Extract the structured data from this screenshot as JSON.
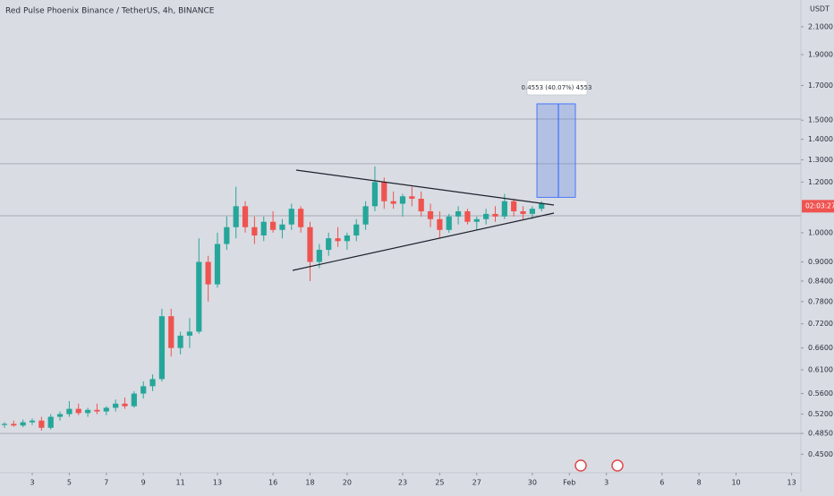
{
  "chart_data": {
    "type": "candlestick",
    "title": "Red Pulse Phoenix Binance / TetherUS, 4h, BINANCE",
    "currency": "USDT",
    "log_scale": true,
    "up_color": "#26a69a",
    "down_color": "#ef5350",
    "x": [
      1.5,
      2,
      2.5,
      3,
      3.5,
      4,
      4.5,
      5,
      5.5,
      6,
      6.5,
      7,
      7.5,
      8,
      8.5,
      9,
      9.5,
      10,
      10.5,
      11,
      11.5,
      12,
      12.5,
      13,
      13.5,
      14,
      14.5,
      15,
      15.5,
      16,
      16.5,
      17,
      17.5,
      18,
      18.5,
      19,
      19.5,
      20,
      20.5,
      21,
      21.5,
      22,
      22.5,
      23,
      23.5,
      24,
      24.5,
      25,
      25.5,
      26,
      26.5,
      27,
      27.5,
      28,
      28.5,
      29,
      29.5,
      30,
      30.5
    ],
    "candles": [
      [
        0.5,
        0.505,
        0.495,
        0.502
      ],
      [
        0.502,
        0.508,
        0.497,
        0.499
      ],
      [
        0.499,
        0.51,
        0.496,
        0.505
      ],
      [
        0.505,
        0.512,
        0.5,
        0.508
      ],
      [
        0.508,
        0.515,
        0.49,
        0.495
      ],
      [
        0.495,
        0.52,
        0.492,
        0.515
      ],
      [
        0.515,
        0.525,
        0.508,
        0.52
      ],
      [
        0.52,
        0.545,
        0.515,
        0.53
      ],
      [
        0.53,
        0.54,
        0.518,
        0.522
      ],
      [
        0.522,
        0.532,
        0.515,
        0.528
      ],
      [
        0.528,
        0.54,
        0.52,
        0.525
      ],
      [
        0.525,
        0.535,
        0.518,
        0.532
      ],
      [
        0.532,
        0.548,
        0.525,
        0.54
      ],
      [
        0.54,
        0.552,
        0.53,
        0.535
      ],
      [
        0.535,
        0.565,
        0.532,
        0.56
      ],
      [
        0.56,
        0.585,
        0.55,
        0.575
      ],
      [
        0.575,
        0.6,
        0.565,
        0.59
      ],
      [
        0.59,
        0.76,
        0.585,
        0.74
      ],
      [
        0.74,
        0.76,
        0.64,
        0.66
      ],
      [
        0.66,
        0.7,
        0.645,
        0.69
      ],
      [
        0.69,
        0.735,
        0.66,
        0.7
      ],
      [
        0.7,
        0.98,
        0.695,
        0.9
      ],
      [
        0.9,
        0.92,
        0.78,
        0.83
      ],
      [
        0.83,
        1.0,
        0.82,
        0.96
      ],
      [
        0.96,
        1.06,
        0.94,
        1.02
      ],
      [
        1.02,
        1.18,
        0.98,
        1.1
      ],
      [
        1.1,
        1.12,
        1.0,
        1.02
      ],
      [
        1.02,
        1.06,
        0.96,
        0.99
      ],
      [
        0.99,
        1.06,
        0.97,
        1.04
      ],
      [
        1.04,
        1.08,
        1.0,
        1.01
      ],
      [
        1.01,
        1.05,
        0.98,
        1.03
      ],
      [
        1.03,
        1.11,
        1.01,
        1.09
      ],
      [
        1.09,
        1.1,
        1.0,
        1.02
      ],
      [
        1.02,
        1.04,
        0.84,
        0.9
      ],
      [
        0.9,
        0.96,
        0.88,
        0.94
      ],
      [
        0.94,
        1.0,
        0.92,
        0.98
      ],
      [
        0.98,
        1.02,
        0.95,
        0.97
      ],
      [
        0.97,
        1.0,
        0.94,
        0.99
      ],
      [
        0.99,
        1.05,
        0.97,
        1.03
      ],
      [
        1.03,
        1.12,
        1.01,
        1.1
      ],
      [
        1.1,
        1.27,
        1.08,
        1.2
      ],
      [
        1.2,
        1.22,
        1.09,
        1.12
      ],
      [
        1.12,
        1.16,
        1.09,
        1.11
      ],
      [
        1.11,
        1.15,
        1.06,
        1.14
      ],
      [
        1.14,
        1.18,
        1.1,
        1.13
      ],
      [
        1.13,
        1.16,
        1.06,
        1.08
      ],
      [
        1.08,
        1.11,
        1.02,
        1.05
      ],
      [
        1.05,
        1.08,
        0.98,
        1.01
      ],
      [
        1.01,
        1.07,
        1.0,
        1.06
      ],
      [
        1.06,
        1.1,
        1.03,
        1.08
      ],
      [
        1.08,
        1.09,
        1.03,
        1.04
      ],
      [
        1.04,
        1.06,
        1.01,
        1.05
      ],
      [
        1.05,
        1.09,
        1.03,
        1.07
      ],
      [
        1.07,
        1.1,
        1.04,
        1.06
      ],
      [
        1.06,
        1.15,
        1.05,
        1.12
      ],
      [
        1.12,
        1.13,
        1.06,
        1.08
      ],
      [
        1.08,
        1.1,
        1.05,
        1.07
      ],
      [
        1.07,
        1.1,
        1.05,
        1.09
      ],
      [
        1.09,
        1.12,
        1.08,
        1.11
      ]
    ],
    "xlim": [
      1.26,
      44.5
    ],
    "ylim": [
      0.421,
      2.313
    ],
    "xticks": [
      3,
      5,
      7,
      9,
      11,
      13,
      16,
      18,
      20,
      23,
      25,
      27,
      30,
      {
        "value": 32,
        "label": "Feb"
      },
      {
        "value": 34,
        "label": "3"
      },
      {
        "value": 37,
        "label": "6"
      },
      {
        "value": 39,
        "label": "8"
      },
      {
        "value": 41,
        "label": "10"
      },
      {
        "value": 44,
        "label": "13"
      }
    ],
    "yticks": [
      {
        "value": 2.1,
        "label": "2.1000"
      },
      {
        "value": 1.9,
        "label": "1.9000"
      },
      {
        "value": 1.7,
        "label": "1.7000"
      },
      {
        "value": 1.5,
        "label": "1.5000"
      },
      {
        "value": 1.4,
        "label": "1.4000"
      },
      {
        "value": 1.3,
        "label": "1.3000"
      },
      {
        "value": 1.2,
        "label": "1.2000"
      },
      {
        "value": 1,
        "label": "1.0000"
      },
      {
        "value": 0.9,
        "label": "0.9000"
      },
      {
        "value": 0.84,
        "label": "0.8400"
      },
      {
        "value": 0.78,
        "label": "0.7800"
      },
      {
        "value": 0.72,
        "label": "0.7200"
      },
      {
        "value": 0.66,
        "label": "0.6600"
      },
      {
        "value": 0.61,
        "label": "0.6100"
      },
      {
        "value": 0.56,
        "label": "0.5600"
      },
      {
        "value": 0.52,
        "label": "0.5200"
      },
      {
        "value": 0.485,
        "label": "0.4850"
      },
      {
        "value": 0.45,
        "label": "0.4500"
      }
    ],
    "horizontal_lines": [
      1.506,
      1.282,
      1.063,
      0.485
    ],
    "countdown": {
      "value": 1.1,
      "label": "02:03:27"
    },
    "measure": {
      "start": 1.136,
      "end": 1.591,
      "label": "0.4553 (40.07%) 4553"
    }
  }
}
